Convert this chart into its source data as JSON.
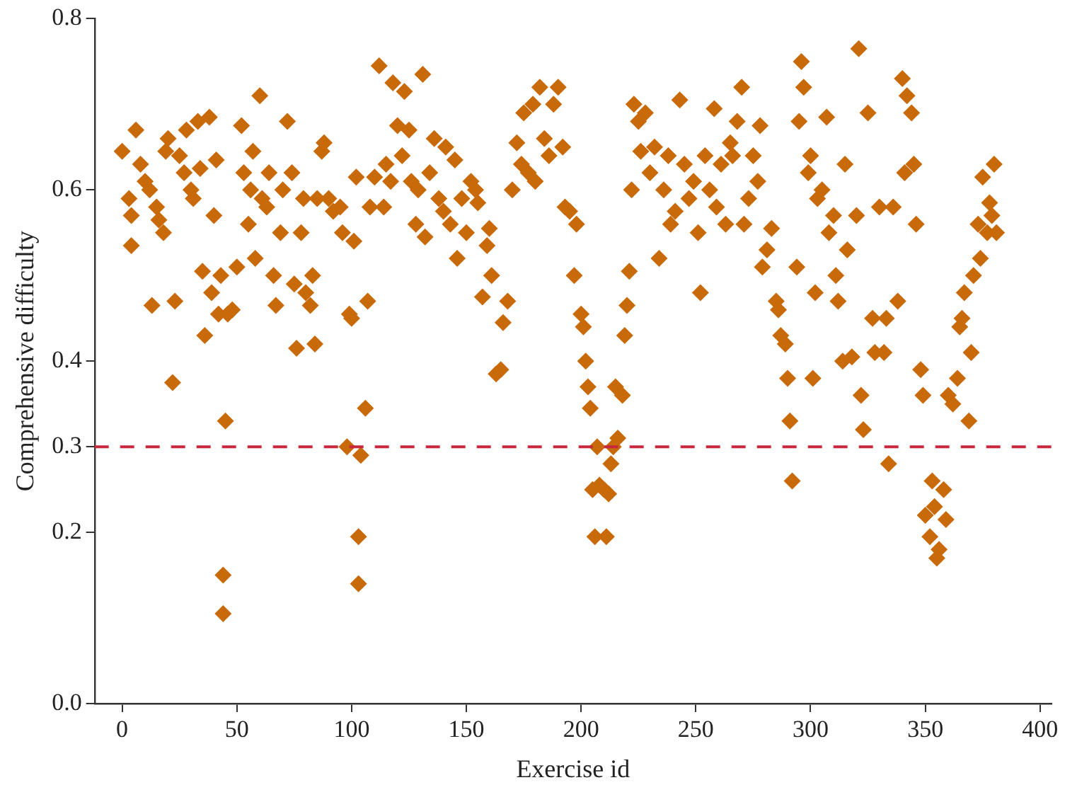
{
  "chart_data": {
    "type": "scatter",
    "xlabel": "Exercise id",
    "ylabel": "Comprehensive difficulty",
    "xlim": [
      -12,
      405
    ],
    "ylim": [
      0,
      0.8
    ],
    "xticks": [
      0,
      50,
      100,
      150,
      200,
      250,
      300,
      350,
      400
    ],
    "yticks": [
      {
        "value": 0,
        "label": "0.0"
      },
      0.2,
      0.3,
      0.4,
      0.6,
      0.8
    ],
    "grid": false,
    "legend": false,
    "marker": "diamond",
    "ref_lines": [
      {
        "axis": "y",
        "value": 0.3,
        "color": "#c8283c",
        "line_style": "dashed"
      }
    ],
    "series": [
      {
        "color": "#c8690a",
        "x": [
          0,
          3,
          4,
          4,
          6,
          8,
          10,
          12,
          13,
          15,
          16,
          18,
          19,
          20,
          22,
          23,
          25,
          27,
          28,
          30,
          31,
          33,
          34,
          35,
          36,
          38,
          39,
          40,
          41,
          42,
          43,
          44,
          44,
          45,
          46,
          48,
          50,
          52,
          53,
          55,
          56,
          57,
          58,
          60,
          61,
          63,
          64,
          66,
          67,
          69,
          70,
          72,
          74,
          75,
          76,
          78,
          79,
          80,
          82,
          83,
          84,
          85,
          87,
          88,
          90,
          92,
          95,
          96,
          98,
          99,
          100,
          101,
          102,
          103,
          103,
          104,
          106,
          107,
          108,
          110,
          112,
          114,
          115,
          117,
          118,
          120,
          122,
          123,
          125,
          126,
          128,
          129,
          131,
          132,
          134,
          136,
          138,
          140,
          141,
          143,
          145,
          146,
          148,
          150,
          152,
          154,
          155,
          157,
          159,
          160,
          161,
          163,
          165,
          166,
          168,
          170,
          172,
          174,
          175,
          177,
          179,
          180,
          182,
          184,
          186,
          188,
          190,
          192,
          193,
          195,
          197,
          198,
          200,
          201,
          202,
          203,
          204,
          205,
          206,
          207,
          208,
          210,
          211,
          212,
          213,
          214,
          215,
          216,
          218,
          219,
          220,
          221,
          222,
          223,
          225,
          226,
          228,
          230,
          232,
          234,
          236,
          238,
          239,
          241,
          243,
          245,
          247,
          249,
          251,
          252,
          254,
          256,
          258,
          259,
          261,
          263,
          265,
          266,
          268,
          270,
          271,
          273,
          275,
          277,
          278,
          279,
          281,
          283,
          285,
          286,
          287,
          289,
          290,
          291,
          292,
          294,
          295,
          296,
          297,
          299,
          300,
          301,
          302,
          303,
          305,
          307,
          308,
          310,
          311,
          312,
          314,
          315,
          316,
          318,
          320,
          321,
          322,
          323,
          325,
          327,
          328,
          330,
          332,
          333,
          334,
          336,
          338,
          340,
          341,
          342,
          344,
          345,
          346,
          348,
          349,
          350,
          352,
          353,
          354,
          355,
          356,
          358,
          359,
          360,
          362,
          364,
          365,
          366,
          367,
          369,
          370,
          371,
          373,
          374,
          375,
          377,
          378,
          379,
          380,
          381
        ],
        "values": [
          0.645,
          0.59,
          0.535,
          0.57,
          0.67,
          0.63,
          0.61,
          0.6,
          0.465,
          0.58,
          0.565,
          0.55,
          0.645,
          0.66,
          0.375,
          0.47,
          0.64,
          0.62,
          0.67,
          0.6,
          0.59,
          0.68,
          0.625,
          0.505,
          0.43,
          0.685,
          0.48,
          0.57,
          0.635,
          0.455,
          0.5,
          0.15,
          0.105,
          0.33,
          0.455,
          0.46,
          0.51,
          0.675,
          0.62,
          0.56,
          0.6,
          0.645,
          0.52,
          0.71,
          0.59,
          0.58,
          0.62,
          0.5,
          0.465,
          0.55,
          0.6,
          0.68,
          0.62,
          0.49,
          0.415,
          0.55,
          0.59,
          0.48,
          0.465,
          0.5,
          0.42,
          0.59,
          0.645,
          0.655,
          0.59,
          0.575,
          0.58,
          0.55,
          0.3,
          0.455,
          0.45,
          0.54,
          0.615,
          0.195,
          0.14,
          0.29,
          0.345,
          0.47,
          0.58,
          0.615,
          0.745,
          0.58,
          0.63,
          0.61,
          0.725,
          0.675,
          0.64,
          0.715,
          0.67,
          0.61,
          0.56,
          0.6,
          0.735,
          0.545,
          0.62,
          0.66,
          0.59,
          0.575,
          0.65,
          0.56,
          0.635,
          0.52,
          0.59,
          0.55,
          0.61,
          0.6,
          0.585,
          0.475,
          0.535,
          0.555,
          0.5,
          0.385,
          0.39,
          0.445,
          0.47,
          0.6,
          0.655,
          0.63,
          0.69,
          0.62,
          0.7,
          0.61,
          0.72,
          0.66,
          0.64,
          0.7,
          0.72,
          0.65,
          0.58,
          0.575,
          0.5,
          0.56,
          0.455,
          0.44,
          0.4,
          0.37,
          0.345,
          0.25,
          0.195,
          0.3,
          0.255,
          0.25,
          0.195,
          0.245,
          0.28,
          0.3,
          0.37,
          0.31,
          0.36,
          0.43,
          0.465,
          0.505,
          0.6,
          0.7,
          0.68,
          0.645,
          0.69,
          0.62,
          0.65,
          0.52,
          0.6,
          0.64,
          0.56,
          0.575,
          0.705,
          0.63,
          0.59,
          0.61,
          0.55,
          0.48,
          0.64,
          0.6,
          0.695,
          0.58,
          0.63,
          0.56,
          0.655,
          0.64,
          0.68,
          0.72,
          0.56,
          0.59,
          0.64,
          0.61,
          0.675,
          0.51,
          0.53,
          0.555,
          0.47,
          0.46,
          0.43,
          0.42,
          0.38,
          0.33,
          0.26,
          0.51,
          0.68,
          0.75,
          0.72,
          0.62,
          0.64,
          0.38,
          0.48,
          0.59,
          0.6,
          0.685,
          0.55,
          0.57,
          0.5,
          0.47,
          0.4,
          0.63,
          0.53,
          0.405,
          0.57,
          0.765,
          0.36,
          0.32,
          0.69,
          0.45,
          0.41,
          0.58,
          0.41,
          0.45,
          0.28,
          0.58,
          0.47,
          0.73,
          0.62,
          0.71,
          0.69,
          0.63,
          0.56,
          0.39,
          0.36,
          0.22,
          0.195,
          0.26,
          0.23,
          0.17,
          0.18,
          0.25,
          0.215,
          0.36,
          0.35,
          0.38,
          0.44,
          0.45,
          0.48,
          0.33,
          0.41,
          0.5,
          0.56,
          0.52,
          0.615,
          0.55,
          0.585,
          0.57,
          0.63,
          0.55
        ]
      }
    ]
  }
}
